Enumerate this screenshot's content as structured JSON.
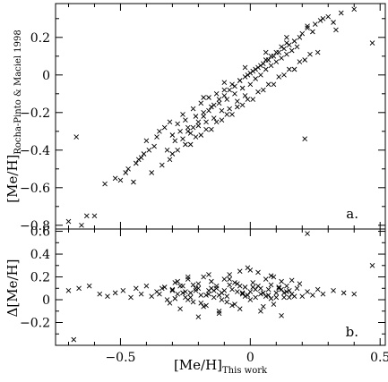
{
  "chart_data": [
    {
      "type": "scatter",
      "panel_label": "a.",
      "xlabel": "",
      "ylabel": {
        "main": "[Me/H]",
        "subscript": "Rocha-Pinto & Maciel 1998"
      },
      "xlim": [
        -0.75,
        0.52
      ],
      "ylim": [
        -0.82,
        0.38
      ],
      "xticks": [
        -0.5,
        0,
        0.5
      ],
      "xtick_labels": [],
      "yticks": [
        -0.8,
        -0.6,
        -0.4,
        -0.2,
        0,
        0.2
      ],
      "ytick_labels": [
        "−0.8",
        "−0.6",
        "−0.4",
        "−0.2",
        "0",
        "0.2"
      ],
      "marker": "x",
      "grid": false,
      "series": [
        {
          "name": "",
          "x": [
            -0.7,
            -0.67,
            -0.63,
            -0.6,
            -0.65,
            -0.56,
            -0.52,
            -0.5,
            -0.48,
            -0.45,
            -0.47,
            -0.43,
            -0.41,
            -0.39,
            -0.44,
            -0.4,
            -0.37,
            -0.35,
            -0.42,
            -0.36,
            -0.33,
            -0.31,
            -0.3,
            -0.32,
            -0.28,
            -0.27,
            -0.26,
            -0.29,
            -0.25,
            -0.24,
            -0.23,
            -0.22,
            -0.21,
            -0.2,
            -0.19,
            -0.18,
            -0.17,
            -0.16,
            -0.15,
            -0.14,
            -0.13,
            -0.12,
            -0.11,
            -0.1,
            -0.09,
            -0.08,
            -0.07,
            -0.06,
            -0.05,
            -0.04,
            -0.03,
            -0.02,
            -0.01,
            0.0,
            0.01,
            0.02,
            0.03,
            0.04,
            0.05,
            0.06,
            0.07,
            0.08,
            0.09,
            0.1,
            0.11,
            0.12,
            0.13,
            0.14,
            0.15,
            0.16,
            0.17,
            0.18,
            0.19,
            0.2,
            0.22,
            0.24,
            0.25,
            0.27,
            0.3,
            0.32,
            0.35,
            0.4,
            0.47,
            -0.26,
            -0.24,
            -0.22,
            -0.2,
            -0.18,
            -0.16,
            -0.14,
            -0.12,
            -0.1,
            -0.08,
            -0.06,
            -0.04,
            -0.02,
            0.0,
            0.02,
            0.04,
            0.06,
            0.08,
            0.1,
            0.12,
            0.14,
            -0.3,
            -0.25,
            -0.21,
            -0.17,
            -0.13,
            -0.09,
            -0.05,
            -0.01,
            0.03,
            0.07,
            0.11,
            0.15,
            0.19,
            0.23,
            -0.34,
            -0.28,
            -0.19,
            -0.11,
            -0.03,
            0.05,
            0.13,
            0.21,
            0.26,
            -0.38,
            -0.31,
            -0.23,
            -0.15,
            -0.07,
            0.01,
            0.09,
            0.17,
            -0.18,
            -0.1,
            -0.02,
            0.06,
            0.14,
            0.22,
            0.28,
            0.33,
            0.21
          ],
          "y": [
            -0.78,
            -0.33,
            -0.75,
            -0.75,
            -0.8,
            -0.58,
            -0.55,
            -0.56,
            -0.52,
            -0.57,
            -0.5,
            -0.45,
            -0.42,
            -0.4,
            -0.47,
            -0.35,
            -0.38,
            -0.3,
            -0.44,
            -0.33,
            -0.28,
            -0.25,
            -0.32,
            -0.4,
            -0.26,
            -0.3,
            -0.21,
            -0.35,
            -0.24,
            -0.28,
            -0.31,
            -0.18,
            -0.22,
            -0.27,
            -0.15,
            -0.2,
            -0.25,
            -0.12,
            -0.17,
            -0.23,
            -0.1,
            -0.15,
            -0.19,
            -0.08,
            -0.13,
            -0.18,
            -0.05,
            -0.1,
            -0.14,
            -0.03,
            -0.07,
            -0.11,
            0.0,
            -0.05,
            0.02,
            -0.02,
            0.04,
            0.0,
            0.06,
            0.03,
            0.08,
            0.05,
            0.1,
            0.07,
            0.12,
            0.09,
            0.14,
            0.11,
            0.16,
            0.13,
            0.18,
            0.15,
            0.2,
            0.22,
            0.25,
            0.23,
            0.27,
            0.29,
            0.31,
            0.28,
            0.33,
            0.35,
            0.17,
            -0.34,
            -0.3,
            -0.28,
            -0.25,
            -0.22,
            -0.19,
            -0.16,
            -0.13,
            -0.11,
            -0.08,
            -0.06,
            -0.03,
            -0.01,
            0.01,
            0.03,
            0.05,
            0.08,
            0.1,
            0.12,
            0.15,
            0.17,
            -0.42,
            -0.37,
            -0.33,
            -0.29,
            -0.25,
            -0.21,
            -0.17,
            -0.13,
            -0.09,
            -0.05,
            -0.01,
            0.03,
            0.07,
            0.11,
            -0.48,
            -0.4,
            -0.32,
            -0.24,
            -0.16,
            -0.08,
            0.0,
            0.08,
            0.12,
            -0.52,
            -0.45,
            -0.37,
            -0.29,
            -0.21,
            -0.13,
            -0.05,
            0.03,
            -0.12,
            -0.04,
            0.04,
            0.12,
            0.2,
            0.26,
            0.3,
            0.24,
            -0.34
          ]
        }
      ]
    },
    {
      "type": "scatter",
      "panel_label": "b.",
      "xlabel": {
        "main": "[Me/H]",
        "subscript": "This work"
      },
      "ylabel": {
        "main": "Δ[Me/H]",
        "subscript": ""
      },
      "xlim": [
        -0.75,
        0.52
      ],
      "ylim": [
        -0.4,
        0.62
      ],
      "xticks": [
        -0.5,
        0,
        0.5
      ],
      "xtick_labels": [
        "−0.5",
        "0",
        "0.5"
      ],
      "yticks": [
        -0.2,
        0,
        0.2,
        0.4,
        0.6
      ],
      "ytick_labels": [
        "−0.2",
        "0",
        "0.2",
        "0.4",
        "0.6"
      ],
      "marker": "x",
      "grid": false,
      "series": [
        {
          "name": "",
          "x": [
            -0.7,
            -0.66,
            -0.62,
            -0.58,
            -0.55,
            -0.52,
            -0.49,
            -0.46,
            -0.44,
            -0.42,
            -0.4,
            -0.38,
            -0.36,
            -0.34,
            -0.32,
            -0.3,
            -0.29,
            -0.28,
            -0.27,
            -0.26,
            -0.25,
            -0.24,
            -0.23,
            -0.22,
            -0.21,
            -0.2,
            -0.19,
            -0.18,
            -0.17,
            -0.16,
            -0.15,
            -0.14,
            -0.13,
            -0.12,
            -0.11,
            -0.1,
            -0.09,
            -0.08,
            -0.07,
            -0.06,
            -0.05,
            -0.04,
            -0.03,
            -0.02,
            -0.01,
            0.0,
            0.01,
            0.02,
            0.03,
            0.04,
            0.05,
            0.06,
            0.07,
            0.08,
            0.09,
            0.1,
            0.11,
            0.12,
            0.13,
            0.14,
            0.15,
            0.16,
            0.18,
            0.2,
            0.22,
            0.24,
            0.26,
            0.28,
            0.32,
            0.36,
            0.4,
            0.47,
            -0.68,
            -0.35,
            -0.31,
            -0.27,
            -0.24,
            -0.21,
            -0.18,
            -0.15,
            -0.12,
            -0.09,
            -0.06,
            -0.03,
            0.0,
            0.03,
            0.06,
            0.09,
            0.12,
            0.15,
            0.19,
            -0.33,
            -0.29,
            -0.25,
            -0.22,
            -0.19,
            -0.16,
            -0.13,
            -0.1,
            -0.07,
            -0.04,
            -0.01,
            0.02,
            0.05,
            0.08,
            0.11,
            0.14,
            0.17,
            -0.3,
            -0.26,
            -0.23,
            -0.2,
            -0.17,
            -0.14,
            -0.11,
            -0.08,
            -0.05,
            -0.02,
            0.01,
            0.04,
            0.07,
            0.1,
            0.13,
            -0.28,
            -0.2,
            -0.12,
            -0.04,
            0.04,
            0.12,
            0.22,
            -0.24,
            -0.16,
            -0.08,
            0.0,
            0.08,
            0.16
          ],
          "y": [
            0.08,
            0.1,
            0.12,
            0.05,
            0.03,
            0.06,
            0.08,
            0.02,
            0.1,
            0.05,
            0.12,
            0.03,
            0.07,
            0.1,
            0.0,
            0.08,
            0.15,
            0.05,
            -0.08,
            0.12,
            0.02,
            0.18,
            0.06,
            -0.02,
            0.1,
            0.14,
            0.04,
            0.2,
            -0.05,
            0.08,
            0.16,
            0.02,
            0.12,
            -0.1,
            0.06,
            0.18,
            0.03,
            0.22,
            0.09,
            -0.04,
            0.14,
            0.25,
            0.05,
            0.11,
            0.28,
            0.07,
            0.15,
            0.02,
            0.24,
            0.1,
            -0.06,
            0.18,
            0.04,
            0.13,
            0.2,
            0.06,
            0.1,
            0.16,
            0.02,
            0.12,
            0.08,
            0.05,
            0.1,
            0.03,
            0.07,
            0.04,
            0.09,
            0.05,
            0.08,
            0.06,
            0.05,
            0.3,
            -0.35,
            0.05,
            -0.03,
            0.12,
            0.0,
            0.08,
            -0.06,
            0.1,
            0.04,
            -0.02,
            0.15,
            0.06,
            0.0,
            0.12,
            0.03,
            -0.04,
            0.09,
            0.02,
            0.14,
            0.11,
            0.01,
            0.07,
            0.13,
            -0.03,
            0.05,
            0.1,
            0.08,
            -0.05,
            0.12,
            0.04,
            0.09,
            0.06,
            0.01,
            0.11,
            0.07,
            0.03,
            0.09,
            0.06,
            0.02,
            0.1,
            0.04,
            0.08,
            0.0,
            0.13,
            0.07,
            0.03,
            0.11,
            0.05,
            0.09,
            0.02,
            0.06,
            0.16,
            -0.15,
            -0.12,
            -0.08,
            -0.1,
            -0.14,
            0.58,
            0.2,
            0.22,
            0.18,
            0.26,
            0.21,
            0.17
          ]
        }
      ]
    }
  ]
}
